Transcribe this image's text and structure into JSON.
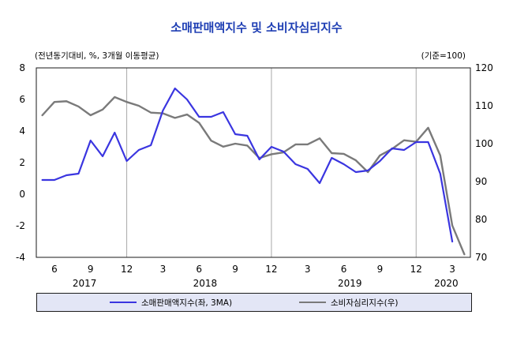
{
  "chart_data": {
    "type": "line",
    "title": "소매판매액지수 및 소비자심리지수",
    "left_axis_note": "(전년동기대비,  %, 3개월 이동평균)",
    "right_axis_note": "(기준=100)",
    "x_tick_labels": [
      "6",
      "9",
      "12",
      "3",
      "6",
      "9",
      "12",
      "3",
      "6",
      "9",
      "12",
      "3"
    ],
    "year_labels": [
      "2017",
      "2018",
      "2019",
      "2020"
    ],
    "months": [
      "2017-05",
      "2017-06",
      "2017-07",
      "2017-08",
      "2017-09",
      "2017-10",
      "2017-11",
      "2017-12",
      "2018-01",
      "2018-02",
      "2018-03",
      "2018-04",
      "2018-05",
      "2018-06",
      "2018-07",
      "2018-08",
      "2018-09",
      "2018-10",
      "2018-11",
      "2018-12",
      "2019-01",
      "2019-02",
      "2019-03",
      "2019-04",
      "2019-05",
      "2019-06",
      "2019-07",
      "2019-08",
      "2019-09",
      "2019-10",
      "2019-11",
      "2019-12",
      "2020-01",
      "2020-02",
      "2020-03",
      "2020-04"
    ],
    "y_left": {
      "min": -4,
      "max": 8,
      "ticks": [
        -4,
        -2,
        0,
        2,
        4,
        6,
        8
      ]
    },
    "y_right": {
      "min": 70,
      "max": 120,
      "ticks": [
        70,
        80,
        90,
        100,
        110,
        120
      ]
    },
    "grid": false,
    "vertical_markers": [
      "2017-12",
      "2018-12",
      "2019-12"
    ],
    "legend_position": "bottom",
    "series": [
      {
        "name": "소매판매액지수(좌,   3MA)",
        "axis": "left",
        "color": "#3a35e0",
        "values": [
          0.9,
          0.9,
          1.2,
          1.3,
          3.4,
          2.4,
          3.9,
          2.1,
          2.8,
          3.1,
          5.3,
          6.7,
          6.0,
          4.9,
          4.9,
          5.2,
          3.8,
          3.7,
          2.2,
          3.0,
          2.7,
          1.9,
          1.6,
          0.7,
          2.3,
          1.9,
          1.4,
          1.5,
          2.1,
          2.9,
          2.8,
          3.3,
          3.3,
          1.3,
          -3.0,
          null
        ]
      },
      {
        "name": "소비자심리지수(우)",
        "axis": "right",
        "color": "#7a7a7a",
        "values": [
          107.5,
          111.0,
          111.2,
          109.8,
          107.5,
          109.0,
          112.3,
          111.0,
          110.0,
          108.2,
          108.0,
          106.8,
          107.7,
          105.5,
          100.8,
          99.2,
          100.0,
          99.5,
          96.2,
          97.2,
          97.7,
          99.8,
          99.8,
          101.4,
          97.5,
          97.3,
          95.6,
          92.5,
          96.9,
          98.6,
          100.9,
          100.5,
          104.2,
          96.9,
          78.4,
          70.8
        ]
      }
    ]
  },
  "legend": {
    "series1_label": "소매판매액지수(좌,   3MA)",
    "series2_label": "소비자심리지수(우)"
  }
}
